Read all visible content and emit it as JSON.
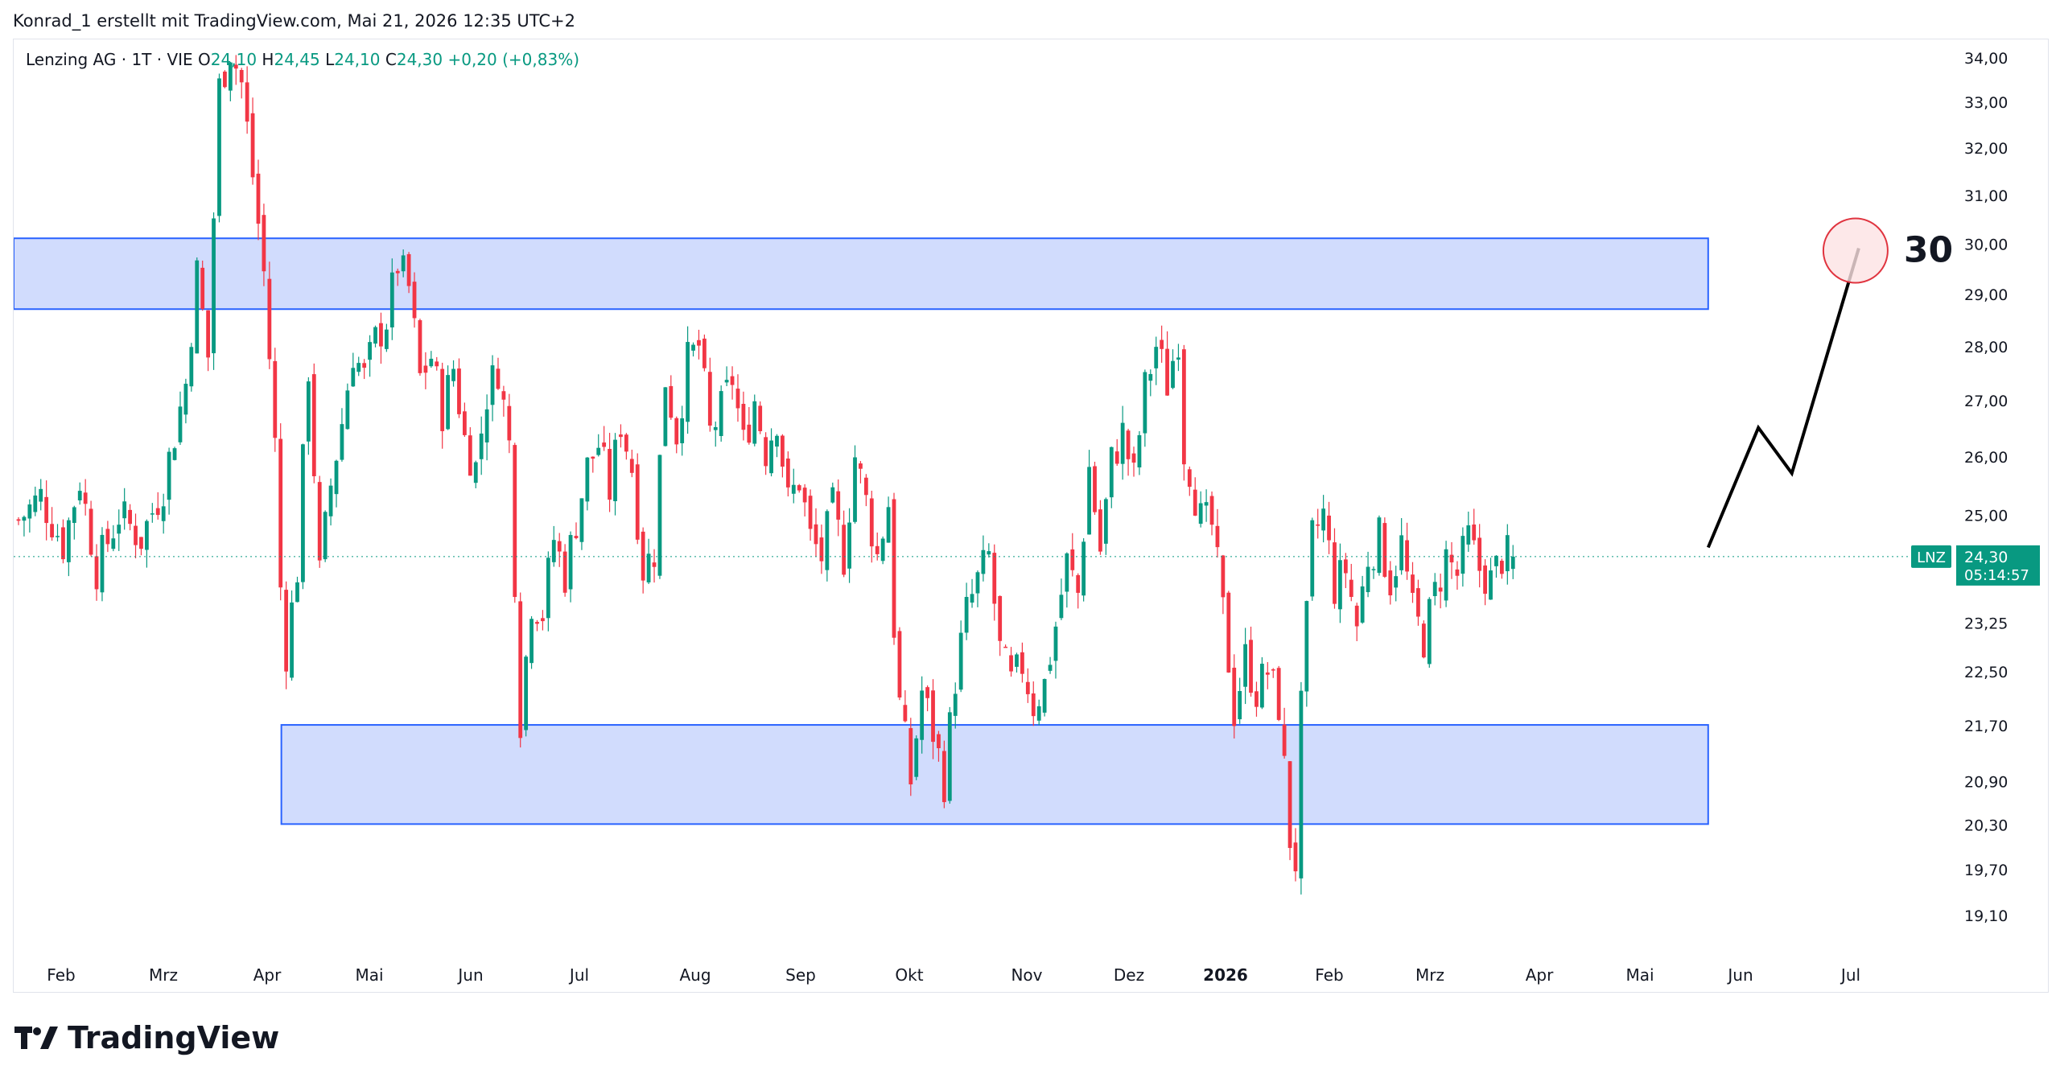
{
  "header": {
    "text": "Konrad_1 erstellt mit TradingView.com, Mai 21, 2026 12:35 UTC+2"
  },
  "legend": {
    "symbol": "Lenzing AG · 1T · VIE",
    "open_label": "O",
    "open_value": "24,10",
    "high_label": "H",
    "high_value": "24,45",
    "low_label": "L",
    "low_value": "24,10",
    "close_label": "C",
    "close_value": "24,30",
    "change": "+0,20 (+0,83%)"
  },
  "badge": {
    "ticker": "LNZ",
    "price": "24,30",
    "countdown": "05:14:57"
  },
  "annotation": {
    "target_label": "30"
  },
  "footer": {
    "brand": "TradingView"
  },
  "colors": {
    "up": "#089981",
    "down": "#f23645",
    "zone_fill": "#d1dcfd",
    "zone_border": "#2962ff",
    "accent": "#089981"
  },
  "chart_data": {
    "type": "candlestick",
    "instrument": "Lenzing AG",
    "y_ticks": [
      "34,00",
      "33,00",
      "32,00",
      "31,00",
      "30,00",
      "29,00",
      "28,00",
      "27,00",
      "26,00",
      "25,00",
      "23,25",
      "22,50",
      "21,70",
      "20,90",
      "20,30",
      "19,70",
      "19,10"
    ],
    "y_tick_values": [
      34.0,
      33.0,
      32.0,
      31.0,
      30.0,
      29.0,
      28.0,
      27.0,
      26.0,
      25.0,
      23.25,
      22.5,
      21.7,
      20.9,
      20.3,
      19.7,
      19.1
    ],
    "x_ticks": [
      "Feb",
      "Mrz",
      "Apr",
      "Mai",
      "Jun",
      "Jul",
      "Aug",
      "Sep",
      "Okt",
      "Nov",
      "Dez",
      "2026",
      "Feb",
      "Mrz",
      "Apr",
      "Mai",
      "Jun",
      "Jul"
    ],
    "x_tick_bold": [
      false,
      false,
      false,
      false,
      false,
      false,
      false,
      false,
      false,
      false,
      false,
      true,
      false,
      false,
      false,
      false,
      false,
      false
    ],
    "last_price": 24.3,
    "price_path": [
      [
        0,
        24.9
      ],
      [
        4,
        25.3
      ],
      [
        8,
        24.5
      ],
      [
        11,
        25.6
      ],
      [
        14,
        24.1
      ],
      [
        18,
        25.0
      ],
      [
        22,
        24.6
      ],
      [
        26,
        25.5
      ],
      [
        30,
        27.3
      ],
      [
        32,
        29.4
      ],
      [
        34,
        27.8
      ],
      [
        36,
        33.3
      ],
      [
        38,
        34.2
      ],
      [
        40,
        33.4
      ],
      [
        42,
        31.4
      ],
      [
        44,
        29.4
      ],
      [
        46,
        26.2
      ],
      [
        47,
        23.8
      ],
      [
        48,
        22.8
      ],
      [
        50,
        24.1
      ],
      [
        52,
        27.6
      ],
      [
        54,
        24.0
      ],
      [
        56,
        25.5
      ],
      [
        58,
        26.6
      ],
      [
        60,
        27.9
      ],
      [
        62,
        27.4
      ],
      [
        64,
        28.1
      ],
      [
        66,
        28.5
      ],
      [
        68,
        29.6
      ],
      [
        70,
        29.1
      ],
      [
        72,
        27.4
      ],
      [
        74,
        27.8
      ],
      [
        76,
        26.8
      ],
      [
        78,
        27.6
      ],
      [
        80,
        26.3
      ],
      [
        82,
        25.8
      ],
      [
        84,
        27.1
      ],
      [
        86,
        27.6
      ],
      [
        88,
        26.2
      ],
      [
        89,
        24.0
      ],
      [
        90,
        21.8
      ],
      [
        92,
        23.6
      ],
      [
        94,
        23.4
      ],
      [
        96,
        24.6
      ],
      [
        98,
        24.0
      ],
      [
        100,
        24.9
      ],
      [
        102,
        25.8
      ],
      [
        104,
        26.2
      ],
      [
        106,
        25.4
      ],
      [
        108,
        26.6
      ],
      [
        110,
        25.8
      ],
      [
        112,
        24.1
      ],
      [
        114,
        24.4
      ],
      [
        116,
        27.4
      ],
      [
        118,
        26.4
      ],
      [
        120,
        27.7
      ],
      [
        122,
        28.0
      ],
      [
        124,
        26.4
      ],
      [
        126,
        26.8
      ],
      [
        128,
        27.4
      ],
      [
        130,
        26.2
      ],
      [
        132,
        27.0
      ],
      [
        134,
        26.1
      ],
      [
        136,
        26.7
      ],
      [
        138,
        25.2
      ],
      [
        140,
        25.6
      ],
      [
        142,
        24.6
      ],
      [
        144,
        24.3
      ],
      [
        146,
        25.1
      ],
      [
        148,
        24.3
      ],
      [
        150,
        26.0
      ],
      [
        152,
        25.2
      ],
      [
        154,
        24.3
      ],
      [
        156,
        25.2
      ],
      [
        157,
        23.2
      ],
      [
        158,
        22.0
      ],
      [
        160,
        20.9
      ],
      [
        162,
        22.2
      ],
      [
        164,
        21.6
      ],
      [
        166,
        20.9
      ],
      [
        168,
        22.4
      ],
      [
        170,
        23.4
      ],
      [
        172,
        23.9
      ],
      [
        174,
        24.3
      ],
      [
        176,
        22.8
      ],
      [
        178,
        22.3
      ],
      [
        180,
        22.6
      ],
      [
        182,
        22.0
      ],
      [
        184,
        22.3
      ],
      [
        186,
        23.2
      ],
      [
        188,
        24.2
      ],
      [
        190,
        23.7
      ],
      [
        192,
        25.8
      ],
      [
        194,
        24.4
      ],
      [
        196,
        25.9
      ],
      [
        198,
        26.4
      ],
      [
        200,
        25.6
      ],
      [
        202,
        27.2
      ],
      [
        204,
        28.0
      ],
      [
        206,
        27.3
      ],
      [
        208,
        28.2
      ],
      [
        209,
        26.1
      ],
      [
        210,
        25.8
      ],
      [
        212,
        24.9
      ],
      [
        214,
        24.8
      ],
      [
        216,
        23.4
      ],
      [
        218,
        21.9
      ],
      [
        220,
        22.7
      ],
      [
        222,
        22.2
      ],
      [
        224,
        22.5
      ],
      [
        226,
        22.0
      ],
      [
        228,
        20.1
      ],
      [
        229,
        19.8
      ],
      [
        230,
        21.9
      ],
      [
        232,
        24.6
      ],
      [
        234,
        25.0
      ],
      [
        236,
        23.8
      ],
      [
        238,
        24.1
      ],
      [
        240,
        23.2
      ],
      [
        242,
        24.3
      ],
      [
        244,
        24.6
      ],
      [
        246,
        23.9
      ],
      [
        248,
        24.5
      ],
      [
        250,
        23.4
      ],
      [
        252,
        23.0
      ],
      [
        254,
        23.7
      ],
      [
        256,
        24.3
      ],
      [
        258,
        24.0
      ],
      [
        260,
        24.6
      ],
      [
        262,
        24.1
      ],
      [
        264,
        23.9
      ],
      [
        266,
        24.3
      ],
      [
        268,
        24.3
      ]
    ],
    "zones": [
      {
        "from_bar": 0,
        "to_bar": 303,
        "low": 28.7,
        "high": 30.1
      },
      {
        "from_bar": 48,
        "to_bar": 303,
        "low": 20.3,
        "high": 21.7
      }
    ],
    "projection": [
      [
        303,
        24.45
      ],
      [
        312,
        26.5
      ],
      [
        318,
        25.7
      ],
      [
        330,
        29.9
      ]
    ],
    "target_marker": {
      "bar": 330,
      "value": 29.9
    },
    "grid": false,
    "scale_type": "log"
  }
}
